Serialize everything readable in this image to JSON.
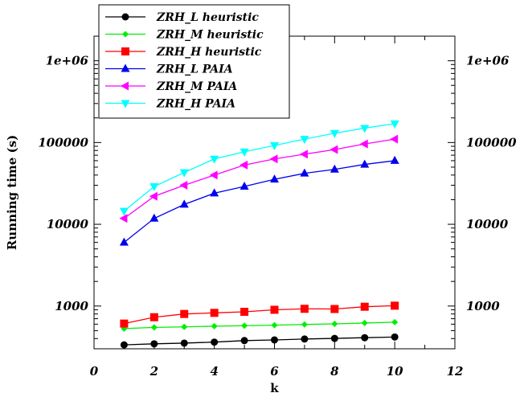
{
  "chart_data": {
    "type": "line",
    "xlabel": "k",
    "ylabel": "Running time (s)",
    "xlim": [
      0,
      12
    ],
    "ylim": [
      300,
      2000000
    ],
    "yscale": "log",
    "grid": false,
    "legend_position": "top-left",
    "x_ticks": [
      0,
      2,
      4,
      6,
      8,
      10,
      12
    ],
    "x_tick_labels": [
      "0",
      "2",
      "4",
      "6",
      "8",
      "10",
      "12"
    ],
    "y_ticks": [
      1000,
      10000,
      100000,
      1000000
    ],
    "y_tick_labels": [
      "1000",
      "10000",
      "100000",
      "1e+06"
    ],
    "x": [
      1,
      2,
      3,
      4,
      5,
      6,
      7,
      8,
      9,
      10
    ],
    "series": [
      {
        "name": "ZRH_L heuristic",
        "color": "#000000",
        "marker": "circle",
        "values": [
          335,
          345,
          352,
          362,
          378,
          385,
          395,
          402,
          410,
          418
        ]
      },
      {
        "name": "ZRH_M heuristic",
        "color": "#00ee00",
        "marker": "diamond",
        "values": [
          530,
          548,
          556,
          567,
          575,
          583,
          595,
          605,
          620,
          635
        ]
      },
      {
        "name": "ZRH_H heuristic",
        "color": "#ff0000",
        "marker": "square",
        "values": [
          610,
          730,
          800,
          825,
          850,
          900,
          925,
          920,
          980,
          1010
        ]
      },
      {
        "name": "ZRH_L PAIA",
        "color": "#0000ee",
        "marker": "triangle-up",
        "values": [
          6000,
          11800,
          17500,
          24000,
          29000,
          35500,
          42000,
          47000,
          54000,
          60000
        ]
      },
      {
        "name": "ZRH_M PAIA",
        "color": "#ff00ff",
        "marker": "triangle-left",
        "values": [
          11800,
          22000,
          30000,
          40000,
          53000,
          63000,
          72000,
          82000,
          96000,
          110000
        ]
      },
      {
        "name": "ZRH_H PAIA",
        "color": "#00ffff",
        "marker": "triangle-down",
        "values": [
          14500,
          29000,
          43000,
          63000,
          77000,
          92000,
          110000,
          130000,
          150000,
          170000
        ]
      }
    ]
  }
}
